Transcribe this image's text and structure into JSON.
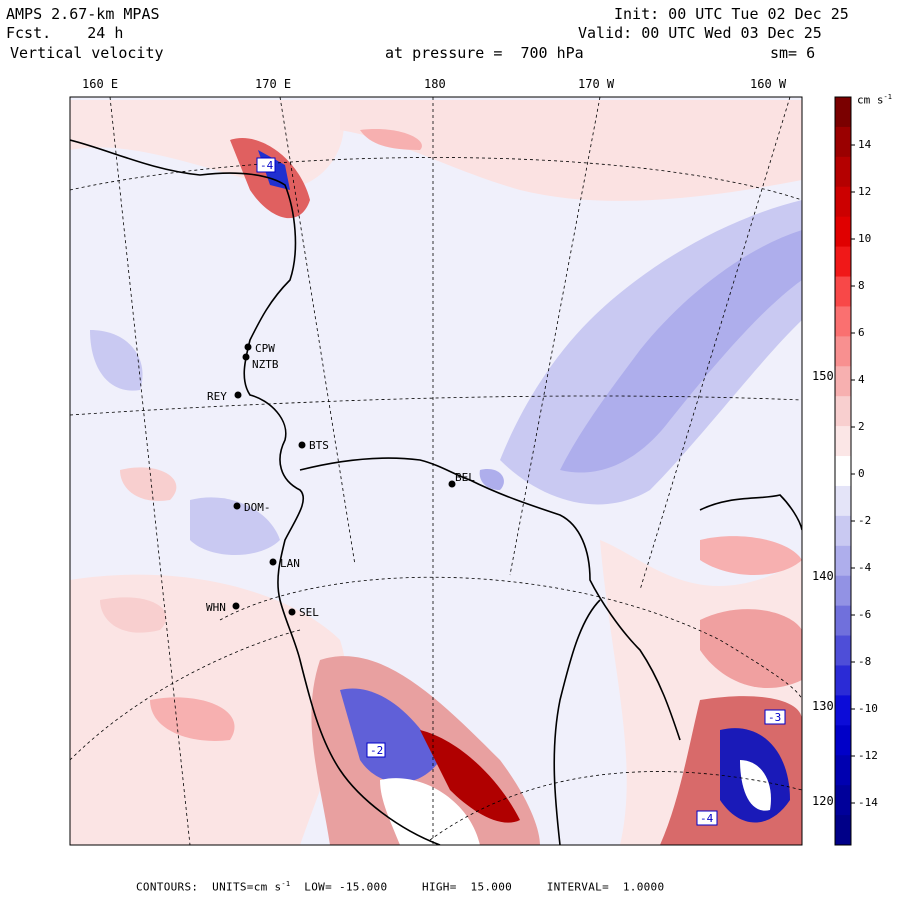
{
  "header": {
    "model": "AMPS 2.67-km MPAS",
    "fcst_label": "Fcst.",
    "fcst_value": "24 h",
    "field": "Vertical velocity",
    "init": "Init: 00 UTC Tue 02 Dec 25",
    "valid": "Valid: 00 UTC Wed 03 Dec 25",
    "level_label": "at pressure =",
    "level_value": "700 hPa",
    "smoothing": "sm= 6"
  },
  "map": {
    "lon_labels": [
      "160 E",
      "170 E",
      "180",
      "170 W",
      "160 W"
    ],
    "lat_labels": [
      "150 W",
      "140 W",
      "130 W",
      "120 W"
    ],
    "stations": [
      {
        "name": "CPW"
      },
      {
        "name": "NZTB"
      },
      {
        "name": "REY"
      },
      {
        "name": "BTS"
      },
      {
        "name": "BEL"
      },
      {
        "name": "DOM-"
      },
      {
        "name": "LAN"
      },
      {
        "name": "WHN"
      },
      {
        "name": "SEL"
      }
    ],
    "contour_labels": [
      "-2",
      "-3",
      "-4",
      "-4"
    ]
  },
  "colorbar": {
    "units": "cm s",
    "units_exp": "-1",
    "labels": [
      "14",
      "12",
      "10",
      "8",
      "6",
      "4",
      "2",
      "0",
      "-2",
      "-4",
      "-6",
      "-8",
      "-10",
      "-12",
      "-14"
    ],
    "colors": [
      "#7a0000",
      "#9a0000",
      "#b40000",
      "#cc0000",
      "#e00000",
      "#f01818",
      "#f84848",
      "#fa7070",
      "#f89090",
      "#f7b0b0",
      "#f8cfcf",
      "#fbe6e6",
      "#ffffff",
      "#e4e4f8",
      "#c9c9f2",
      "#aeaeec",
      "#9292e4",
      "#7070dc",
      "#4e4ed8",
      "#2b2bd6",
      "#0c0cd8",
      "#0000c8",
      "#0000b0",
      "#00009a",
      "#000088"
    ]
  },
  "footer": {
    "contours": "CONTOURS:",
    "units_label": "UNITS=cm s",
    "units_exp": "-1",
    "low_label": "LOW=",
    "low": "-15.000",
    "high_label": "HIGH=",
    "high": "15.000",
    "interval_label": "INTERVAL=",
    "interval": "1.0000"
  }
}
